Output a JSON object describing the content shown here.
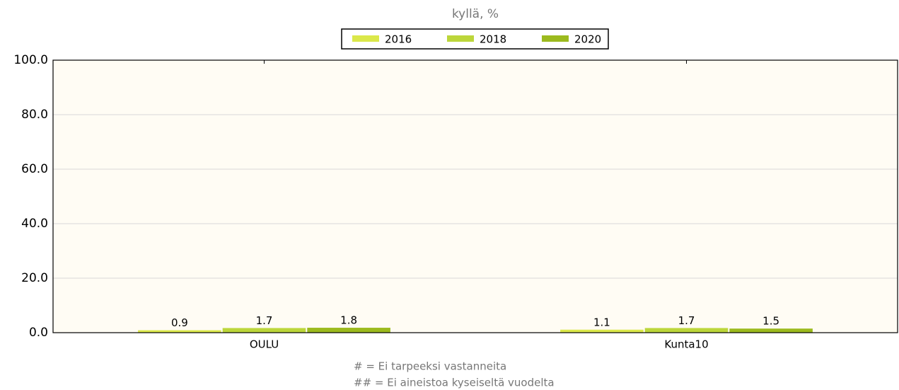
{
  "chart_data": {
    "type": "bar",
    "title": "kyllä, %",
    "categories": [
      "OULU",
      "Kunta10"
    ],
    "series": [
      {
        "name": "2016",
        "color": "#dbe84a",
        "values": [
          0.9,
          1.1
        ]
      },
      {
        "name": "2018",
        "color": "#bcd63a",
        "values": [
          1.7,
          1.7
        ]
      },
      {
        "name": "2020",
        "color": "#9cba1e",
        "values": [
          1.8,
          1.5
        ]
      }
    ],
    "ylim": [
      0,
      100
    ],
    "yticks": [
      {
        "value": 0,
        "label": "0.0"
      },
      {
        "value": 20,
        "label": "20.0"
      },
      {
        "value": 40,
        "label": "40.0"
      },
      {
        "value": 60,
        "label": "60.0"
      },
      {
        "value": 80,
        "label": "80.0"
      },
      {
        "value": 100,
        "label": "100.0"
      }
    ],
    "grid": true,
    "legend": "top",
    "notes": [
      "# = Ei tarpeeksi vastanneita",
      "## = Ei aineistoa kyseiseltä vuodelta"
    ]
  }
}
